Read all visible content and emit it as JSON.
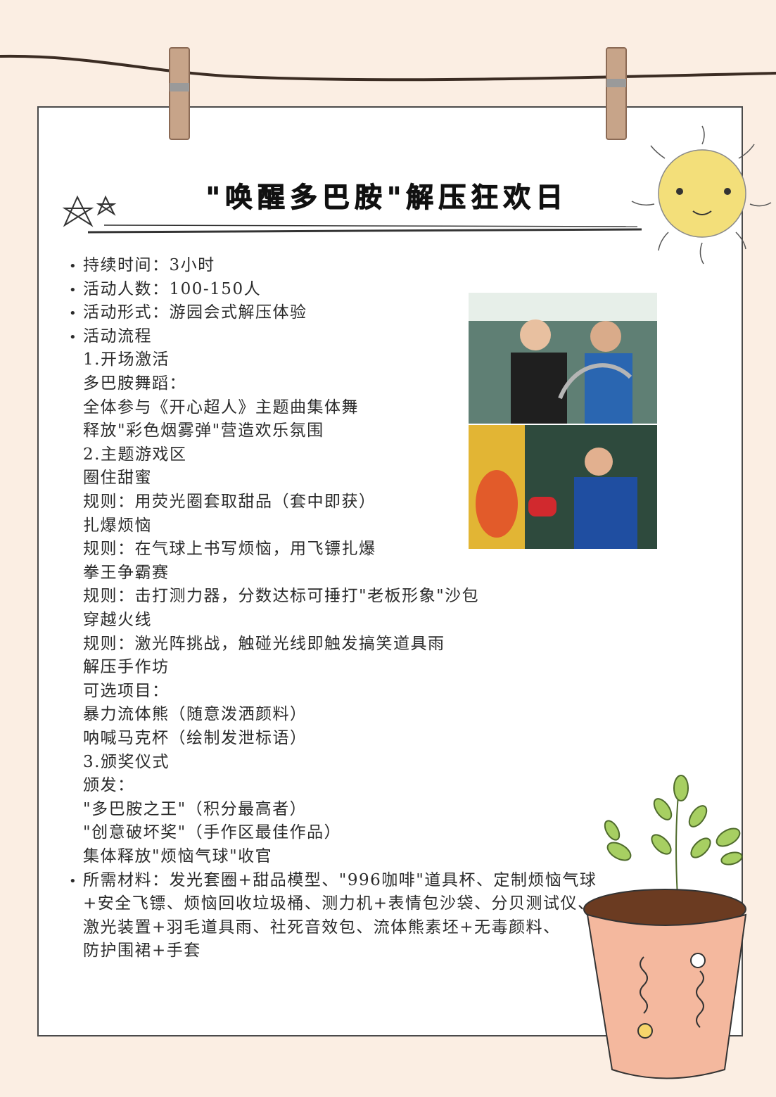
{
  "title": "\"唤醒多巴胺\"解压狂欢日",
  "bullet_char": "•",
  "lines": [
    {
      "text": "持续时间：3小时",
      "bullet": true
    },
    {
      "text": "活动人数：100-150人",
      "bullet": true
    },
    {
      "text": "活动形式：游园会式解压体验",
      "bullet": true
    },
    {
      "text": "活动流程",
      "bullet": true
    },
    {
      "text": "1.开场激活",
      "bullet": false
    },
    {
      "text": "多巴胺舞蹈：",
      "bullet": false
    },
    {
      "text": "全体参与《开心超人》主题曲集体舞",
      "bullet": false
    },
    {
      "text": "释放\"彩色烟雾弹\"营造欢乐氛围",
      "bullet": false
    },
    {
      "text": "2.主题游戏区",
      "bullet": false
    },
    {
      "text": "圈住甜蜜",
      "bullet": false
    },
    {
      "text": "规则：用荧光圈套取甜品（套中即获）",
      "bullet": false
    },
    {
      "text": "扎爆烦恼",
      "bullet": false
    },
    {
      "text": "规则：在气球上书写烦恼，用飞镖扎爆",
      "bullet": false
    },
    {
      "text": "拳王争霸赛",
      "bullet": false
    },
    {
      "text": "规则：击打测力器，分数达标可捶打\"老板形象\"沙包",
      "bullet": false
    },
    {
      "text": "穿越火线",
      "bullet": false
    },
    {
      "text": "规则：激光阵挑战，触碰光线即触发搞笑道具雨",
      "bullet": false
    },
    {
      "text": "解压手作坊",
      "bullet": false
    },
    {
      "text": "可选项目：",
      "bullet": false
    },
    {
      "text": "暴力流体熊（随意泼洒颜料）",
      "bullet": false
    },
    {
      "text": "呐喊马克杯（绘制发泄标语）",
      "bullet": false
    },
    {
      "text": "3.颁奖仪式",
      "bullet": false
    },
    {
      "text": "颁发：",
      "bullet": false
    },
    {
      "text": "\"多巴胺之王\"（积分最高者）",
      "bullet": false
    },
    {
      "text": "\"创意破坏奖\"（手作区最佳作品）",
      "bullet": false
    },
    {
      "text": "集体释放\"烦恼气球\"收官",
      "bullet": false
    },
    {
      "text": "所需材料：发光套圈+甜品模型、\"996咖啡\"道具杯、定制烦恼气球",
      "bullet": true
    },
    {
      "text": "+安全飞镖、烦恼回收垃圾桶、测力机+表情包沙袋、分贝测试仪、",
      "bullet": false
    },
    {
      "text": "激光装置+羽毛道具雨、社死音效包、流体熊素坯+无毒颜料、",
      "bullet": false
    },
    {
      "text": "防护围裙+手套",
      "bullet": false
    }
  ],
  "colors": {
    "page_bg": "#fbeee3",
    "card_bg": "#ffffff",
    "sun": "#f3df7a",
    "pot": "#f4b89e",
    "leaf": "#a7cf62"
  },
  "icons": [
    "clothesline",
    "clothespin-icon",
    "doodle-stars-icon",
    "sun-doodle-icon",
    "potted-plant-icon",
    "photo-placeholder"
  ]
}
